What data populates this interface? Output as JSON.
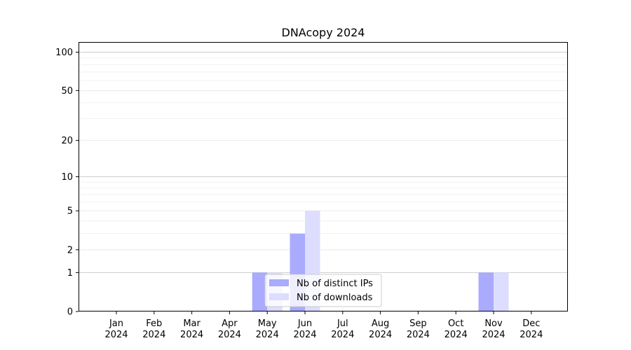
{
  "chart_data": {
    "type": "bar",
    "title": "DNAcopy 2024",
    "xlabel": "",
    "ylabel": "",
    "y_scale": "log1p",
    "ylim": [
      0,
      120
    ],
    "grid": "horizontal",
    "legend_position": "bottom-center",
    "categories": [
      [
        "Jan",
        "2024"
      ],
      [
        "Feb",
        "2024"
      ],
      [
        "Mar",
        "2024"
      ],
      [
        "Apr",
        "2024"
      ],
      [
        "May",
        "2024"
      ],
      [
        "Jun",
        "2024"
      ],
      [
        "Jul",
        "2024"
      ],
      [
        "Aug",
        "2024"
      ],
      [
        "Sep",
        "2024"
      ],
      [
        "Oct",
        "2024"
      ],
      [
        "Nov",
        "2024"
      ],
      [
        "Dec",
        "2024"
      ]
    ],
    "y_ticks": [
      {
        "label": "0",
        "value": 0
      },
      {
        "label": "1",
        "value": 1
      },
      {
        "label": "2",
        "value": 2
      },
      {
        "label": "5",
        "value": 5
      },
      {
        "label": "10",
        "value": 10
      },
      {
        "label": "20",
        "value": 20
      },
      {
        "label": "50",
        "value": 50
      },
      {
        "label": "100",
        "value": 100
      }
    ],
    "series": [
      {
        "name": "Nb of distinct IPs",
        "color": "#aaaaff",
        "values": [
          0,
          0,
          0,
          0,
          1,
          3,
          0,
          0,
          0,
          0,
          1,
          0
        ]
      },
      {
        "name": "Nb of downloads",
        "color": "#ddddff",
        "values": [
          0,
          0,
          0,
          0,
          1,
          5,
          0,
          0,
          0,
          0,
          1,
          0
        ]
      }
    ]
  }
}
